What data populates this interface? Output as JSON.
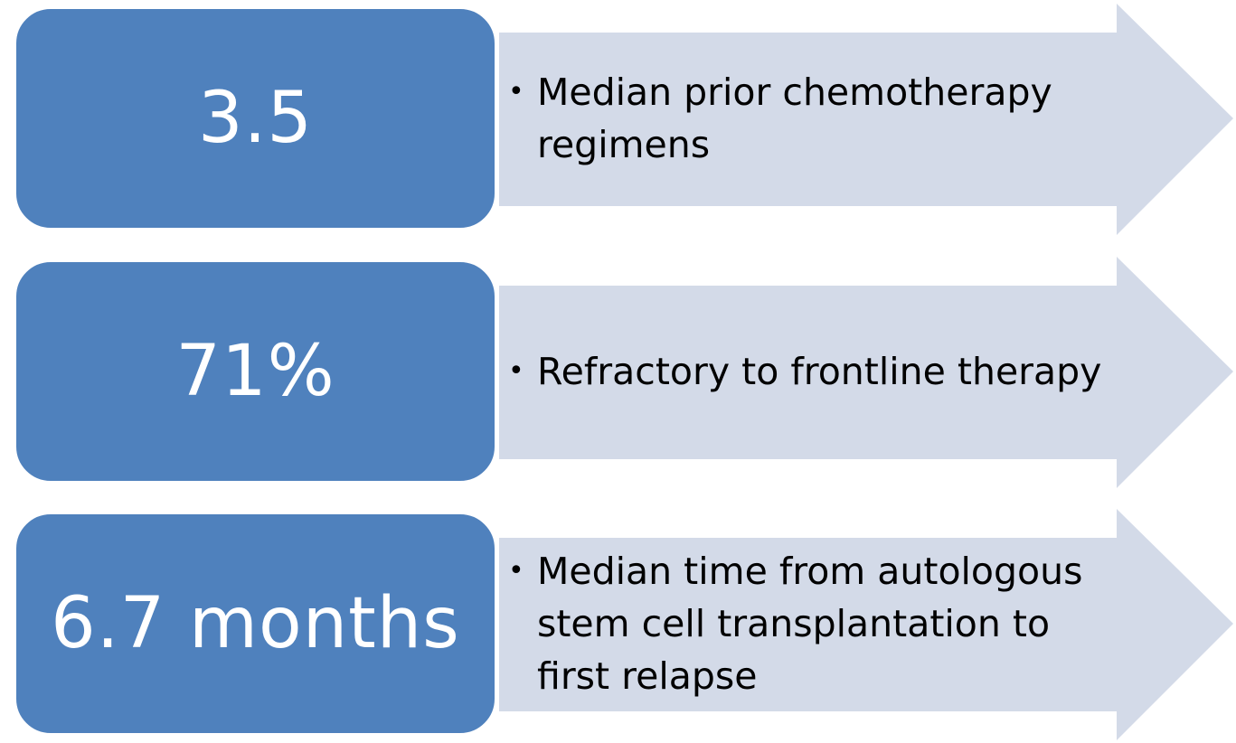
{
  "colors": {
    "box_fill": "#4F81BD",
    "arrow_fill": "#D3DAE8",
    "box_text": "#FFFFFF",
    "bullet_text": "#000000"
  },
  "rows": [
    {
      "value": "3.5",
      "bullet_icon": "bullet-dot-icon",
      "description": "Median prior chemotherapy regimens"
    },
    {
      "value": "71%",
      "bullet_icon": "bullet-dot-icon",
      "description": "Refractory to frontline therapy"
    },
    {
      "value": "6.7 months",
      "bullet_icon": "bullet-dot-icon",
      "description": "Median time from autologous stem cell transplantation to first relapse"
    }
  ]
}
